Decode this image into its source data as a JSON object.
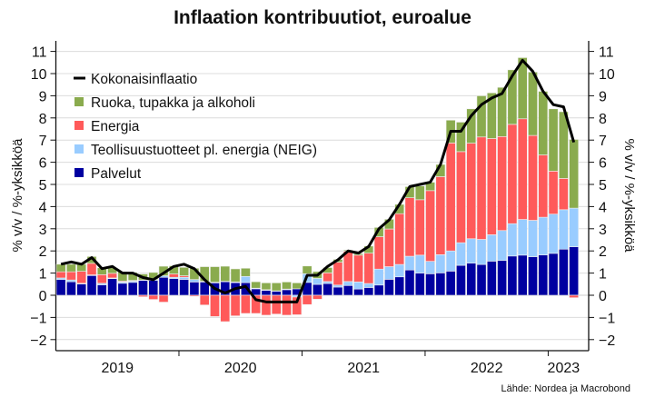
{
  "chart_data": {
    "type": "bar",
    "title": "Inflaation kontribuutiot, euroalue",
    "ylabel": "% v/v / %-yksikköä",
    "ylabel_right": "% v/v / %-yksikköä",
    "ylim": [
      -2,
      11
    ],
    "yticks": [
      -2,
      -1,
      0,
      1,
      2,
      3,
      4,
      5,
      6,
      7,
      8,
      9,
      10,
      11
    ],
    "year_labels": [
      "2019",
      "2020",
      "2021",
      "2022",
      "2023"
    ],
    "x_start": "2019-01",
    "x_end": "2023-03",
    "frequency": "monthly",
    "grid": true,
    "legend_position": "top-left",
    "stacked": true,
    "series": [
      {
        "name": "Palvelut",
        "color": "#0000a0",
        "values": [
          0.71,
          0.61,
          0.51,
          0.89,
          0.47,
          0.75,
          0.54,
          0.58,
          0.67,
          0.67,
          0.81,
          0.75,
          0.71,
          0.6,
          0.6,
          0.56,
          0.61,
          0.57,
          0.57,
          0.29,
          0.22,
          0.19,
          0.25,
          0.29,
          0.58,
          0.49,
          0.53,
          0.37,
          0.44,
          0.28,
          0.35,
          0.46,
          0.72,
          0.83,
          1.14,
          1.0,
          0.97,
          1.01,
          1.09,
          1.35,
          1.45,
          1.39,
          1.54,
          1.57,
          1.77,
          1.81,
          1.74,
          1.82,
          1.89,
          2.08,
          2.19
        ]
      },
      {
        "name": "Teollisuustuotteet pl. energia (NEIG)",
        "color": "#99ccff",
        "values": [
          0.07,
          0.08,
          0.03,
          0.03,
          0.07,
          0.03,
          0.06,
          0.06,
          0.02,
          0.04,
          0.07,
          0.06,
          0.1,
          0.11,
          0.03,
          0.03,
          0.02,
          0.03,
          0.28,
          0.03,
          0.03,
          0.01,
          0.03,
          -0.08,
          0.39,
          0.27,
          0.09,
          0.09,
          0.18,
          0.32,
          0.18,
          0.72,
          0.57,
          0.56,
          0.62,
          0.81,
          0.56,
          0.82,
          0.91,
          1.02,
          1.1,
          1.13,
          1.19,
          1.35,
          1.46,
          1.61,
          1.64,
          1.7,
          1.77,
          1.78,
          1.74
        ]
      },
      {
        "name": "Energia",
        "color": "#ff5a5a",
        "values": [
          0.28,
          0.37,
          0.54,
          0.52,
          0.39,
          0.21,
          0.04,
          0.03,
          -0.07,
          -0.19,
          -0.31,
          0.15,
          0.07,
          -0.05,
          -0.44,
          -0.96,
          -1.19,
          -0.93,
          -0.82,
          -0.82,
          -0.9,
          -0.85,
          -0.9,
          -0.8,
          -0.42,
          -0.18,
          0.39,
          1.03,
          1.37,
          1.21,
          1.37,
          1.46,
          1.7,
          2.29,
          2.64,
          2.5,
          3.19,
          3.52,
          4.87,
          4.11,
          4.31,
          4.62,
          4.34,
          4.24,
          4.48,
          4.54,
          3.83,
          2.81,
          1.94,
          1.41,
          -0.11
        ]
      },
      {
        "name": "Ruoka, tupakka ja alkoholi",
        "color": "#8aab4e",
        "values": [
          0.34,
          0.34,
          0.32,
          0.31,
          0.31,
          0.25,
          0.42,
          0.36,
          0.27,
          0.32,
          0.43,
          0.37,
          0.38,
          0.51,
          0.66,
          0.7,
          0.68,
          0.59,
          0.37,
          0.29,
          0.31,
          0.36,
          0.32,
          0.27,
          0.35,
          0.31,
          0.24,
          0.13,
          0.05,
          0.07,
          0.32,
          0.42,
          0.44,
          0.42,
          0.5,
          0.62,
          0.38,
          0.55,
          1.03,
          1.33,
          1.55,
          1.86,
          2.06,
          2.22,
          2.46,
          2.76,
          2.86,
          2.87,
          2.81,
          3.01,
          3.1
        ]
      }
    ],
    "line": {
      "name": "Kokonaisinflaatio",
      "color": "#000000",
      "values": [
        1.4,
        1.5,
        1.4,
        1.7,
        1.2,
        1.3,
        1.0,
        1.0,
        0.8,
        0.7,
        1.0,
        1.3,
        1.4,
        1.2,
        0.7,
        0.3,
        0.1,
        0.3,
        0.4,
        -0.2,
        -0.3,
        -0.3,
        -0.3,
        -0.3,
        0.9,
        0.9,
        1.3,
        1.6,
        2.0,
        1.9,
        2.2,
        3.0,
        3.4,
        4.1,
        4.9,
        5.0,
        5.1,
        5.9,
        7.4,
        7.4,
        8.1,
        8.6,
        8.9,
        9.1,
        9.9,
        10.6,
        10.1,
        9.2,
        8.6,
        8.5,
        6.9
      ]
    },
    "legend": [
      "Kokonaisinflaatio",
      "Ruoka, tupakka ja alkoholi",
      "Energia",
      "Teollisuustuotteet pl. energia (NEIG)",
      "Palvelut"
    ]
  },
  "source": "Lähde: Nordea ja Macrobond"
}
